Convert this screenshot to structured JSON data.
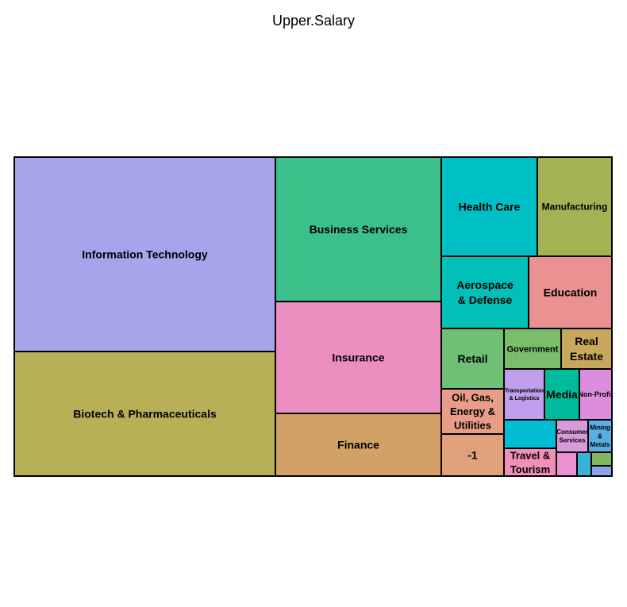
{
  "chart_data": {
    "type": "treemap",
    "title": "Upper.Salary",
    "tiles": [
      {
        "label": "Information Technology",
        "color": "#a6a4ea"
      },
      {
        "label": "Biotech & Pharmaceuticals",
        "color": "#b8b056"
      },
      {
        "label": "Business Services",
        "color": "#3cc08b"
      },
      {
        "label": "Insurance",
        "color": "#ec8ebf"
      },
      {
        "label": "Finance",
        "color": "#d3a167"
      },
      {
        "label": "Health Care",
        "color": "#00bfc4"
      },
      {
        "label": "Manufacturing",
        "color": "#a4b254"
      },
      {
        "label": "Aerospace & Defense",
        "color": "#00c0b8"
      },
      {
        "label": "Education",
        "color": "#ea9292"
      },
      {
        "label": "Retail",
        "color": "#6fbf74"
      },
      {
        "label": "Government",
        "color": "#7bbd6b"
      },
      {
        "label": "Real Estate",
        "color": "#c8a85c"
      },
      {
        "label": "Oil, Gas, Energy & Utilities",
        "color": "#e89e86"
      },
      {
        "label": "Transportation & Logistics",
        "color": "#c19ded"
      },
      {
        "label": "Media",
        "color": "#00bb9b"
      },
      {
        "label": "Non-Profit",
        "color": "#dd8ddd"
      },
      {
        "label": "-1",
        "color": "#e0a07a"
      },
      {
        "label": "",
        "color": "#00bdd4"
      },
      {
        "label": "Consumer Services",
        "color": "#d99ad9"
      },
      {
        "label": "Mining & Metals",
        "color": "#5aaee2"
      },
      {
        "label": "Travel & Tourism",
        "color": "#f08fb8"
      },
      {
        "label": "",
        "color": "#ee8fd2"
      },
      {
        "label": "",
        "color": "#39b1d9"
      },
      {
        "label": "",
        "color": "#7fb85f"
      },
      {
        "label": "",
        "color": "#8ca4e6"
      }
    ]
  }
}
